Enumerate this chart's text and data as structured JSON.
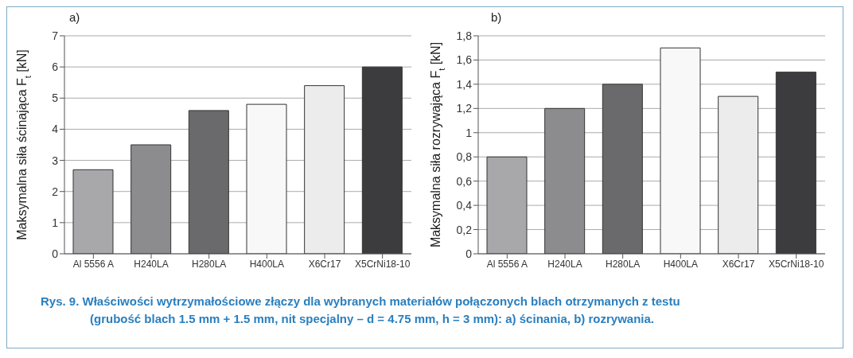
{
  "chart_data": [
    {
      "type": "bar",
      "title": "a)",
      "ylabel": "Maksymalna siła ścinająca F$_{t}$ [kN]",
      "categories": [
        "Al 5556 A",
        "H240LA",
        "H280LA",
        "H400LA",
        "X6Cr17",
        "X5CrNi18-10"
      ],
      "values": [
        2.7,
        3.5,
        4.6,
        4.8,
        5.4,
        6.0
      ],
      "colors": [
        "#a8a8aa",
        "#8c8c8e",
        "#6a6a6c",
        "#f8f8f8",
        "#ececec",
        "#3c3c3e"
      ],
      "ylim": [
        0,
        7
      ],
      "yticks": [
        0,
        1,
        2,
        3,
        4,
        5,
        6,
        7
      ],
      "grid": "y"
    },
    {
      "type": "bar",
      "title": "b)",
      "ylabel": "Maksymalna siła rozrywająca F$_{t}$ [kN]",
      "categories": [
        "Al 5556 A",
        "H240LA",
        "H280LA",
        "H400LA",
        "X6Cr17",
        "X5CrNi18-10"
      ],
      "values": [
        0.8,
        1.2,
        1.4,
        1.7,
        1.3,
        1.5
      ],
      "colors": [
        "#a8a8aa",
        "#8c8c8e",
        "#6a6a6c",
        "#f8f8f8",
        "#ececec",
        "#3c3c3e"
      ],
      "ylim": [
        0,
        1.8
      ],
      "yticks": [
        0,
        {
          "value": 0.2,
          "label": "0,2"
        },
        {
          "value": 0.4,
          "label": "0,4"
        },
        {
          "value": 0.6,
          "label": "0,6"
        },
        {
          "value": 0.8,
          "label": "0,8"
        },
        1,
        {
          "value": 1.2,
          "label": "1,2"
        },
        {
          "value": 1.4,
          "label": "1,4"
        },
        {
          "value": 1.6,
          "label": "1,6"
        },
        {
          "value": 1.8,
          "label": "1,8"
        }
      ],
      "grid": "y",
      "annotations": [
        "Rys. 9. Właściwości wytrzymałościowe złączy dla wybranych materiałów połączonych blach otrzymanych z testu (grubość blach 1.5 mm + 1.5 mm, nit specjalny – d = 4.75 mm, h = 3 mm): a) ścinania, b) rozrywania."
      ]
    }
  ]
}
